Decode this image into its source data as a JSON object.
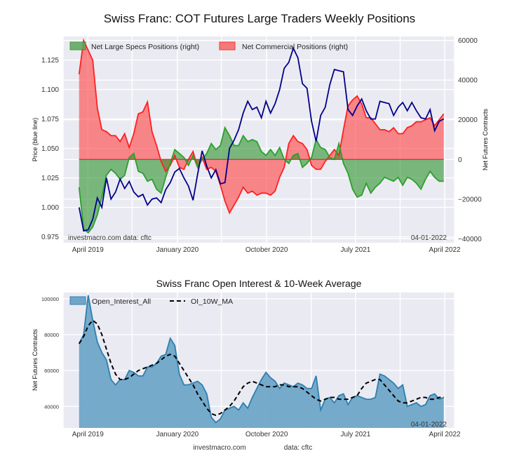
{
  "chart_data": [
    {
      "type": "line",
      "title": "Swiss Franc: COT Futures Large Traders Weekly Positions",
      "xlabel": "",
      "ylabel": "Price (blue line)",
      "y2label": "Net Futures Contracts",
      "x_ticks": [
        "April 2019",
        "January 2020",
        "October 2020",
        "July 2021",
        "April 2022"
      ],
      "y_ticks": [
        "0.975",
        "1.000",
        "1.025",
        "1.050",
        "1.075",
        "1.100",
        "1.125"
      ],
      "y2_ticks": [
        "−40000",
        "−20000",
        "0",
        "20000",
        "40000",
        "60000"
      ],
      "ylim": [
        0.97,
        1.145
      ],
      "y2lim": [
        -42000,
        62000
      ],
      "grid": true,
      "legend": "top-left",
      "annotations": {
        "source": "investmacro.com   data: cftc",
        "date": "04-01-2022"
      },
      "x": [
        "2019-03-05",
        "2019-03-19",
        "2019-04-02",
        "2019-04-16",
        "2019-04-30",
        "2019-05-14",
        "2019-05-28",
        "2019-06-11",
        "2019-06-25",
        "2019-07-09",
        "2019-07-23",
        "2019-08-06",
        "2019-08-20",
        "2019-09-03",
        "2019-09-17",
        "2019-10-01",
        "2019-10-15",
        "2019-10-29",
        "2019-11-12",
        "2019-11-26",
        "2019-12-10",
        "2019-12-24",
        "2020-01-07",
        "2020-01-21",
        "2020-02-04",
        "2020-02-18",
        "2020-03-03",
        "2020-03-17",
        "2020-03-31",
        "2020-04-14",
        "2020-04-28",
        "2020-05-12",
        "2020-05-26",
        "2020-06-09",
        "2020-06-23",
        "2020-07-07",
        "2020-07-21",
        "2020-08-04",
        "2020-08-18",
        "2020-09-01",
        "2020-09-15",
        "2020-09-29",
        "2020-10-13",
        "2020-10-27",
        "2020-11-10",
        "2020-11-24",
        "2020-12-08",
        "2020-12-22",
        "2021-01-05",
        "2021-01-19",
        "2021-02-02",
        "2021-02-16",
        "2021-03-02",
        "2021-03-16",
        "2021-03-30",
        "2021-04-13",
        "2021-04-27",
        "2021-05-11",
        "2021-05-25",
        "2021-06-08",
        "2021-06-22",
        "2021-07-06",
        "2021-07-20",
        "2021-08-03",
        "2021-08-17",
        "2021-08-31",
        "2021-09-14",
        "2021-09-28",
        "2021-10-12",
        "2021-10-26",
        "2021-11-09",
        "2021-11-23",
        "2021-12-07",
        "2021-12-21",
        "2022-01-04",
        "2022-01-18",
        "2022-02-01",
        "2022-02-15",
        "2022-03-01",
        "2022-03-15",
        "2022-03-29"
      ],
      "series": [
        {
          "name": "Price (blue line)",
          "axis": "left",
          "color": "#00008b",
          "values": [
            1.0,
            0.98,
            0.981,
            0.99,
            1.008,
            1.0,
            1.025,
            1.007,
            1.013,
            1.024,
            1.016,
            1.022,
            1.013,
            1.009,
            1.011,
            1.002,
            1.007,
            1.008,
            1.004,
            1.015,
            1.021,
            1.03,
            1.033,
            1.025,
            1.018,
            1.006,
            1.028,
            1.048,
            1.035,
            1.025,
            1.032,
            1.02,
            1.021,
            1.05,
            1.057,
            1.066,
            1.08,
            1.09,
            1.083,
            1.085,
            1.076,
            1.09,
            1.08,
            1.088,
            1.1,
            1.118,
            1.123,
            1.135,
            1.127,
            1.105,
            1.101,
            1.073,
            1.056,
            1.078,
            1.085,
            1.104,
            1.117,
            1.116,
            1.115,
            1.083,
            1.078,
            1.086,
            1.092,
            1.082,
            1.075,
            1.075,
            1.09,
            1.089,
            1.088,
            1.078,
            1.085,
            1.089,
            1.082,
            1.089,
            1.082,
            1.076,
            1.075,
            1.083,
            1.065,
            1.073,
            1.075
          ]
        },
        {
          "name": "Net Large Specs Positions (right)",
          "axis": "right",
          "color": "#2ca02c",
          "values": [
            -14000,
            -35000,
            -37000,
            -34000,
            -28000,
            -19000,
            -8000,
            -5000,
            -7000,
            -10000,
            -8000,
            1000,
            3000,
            -6000,
            -7000,
            -11000,
            -10000,
            -15000,
            -17000,
            -9000,
            -2000,
            5000,
            3000,
            1000,
            -3000,
            2000,
            -4000,
            0,
            3000,
            8000,
            5000,
            7000,
            16000,
            12000,
            7000,
            7000,
            12000,
            9000,
            10000,
            9000,
            4000,
            2000,
            5000,
            2000,
            6000,
            0,
            -2000,
            2000,
            3000,
            -4000,
            -2000,
            1000,
            10000,
            6000,
            5000,
            1000,
            0,
            8000,
            -2000,
            -7000,
            -15000,
            -19000,
            -18000,
            -12000,
            -17000,
            -14000,
            -12000,
            -9000,
            -10000,
            -11000,
            -9000,
            -13000,
            -9000,
            -10000,
            -12000,
            -15000,
            -10000,
            -6000,
            -9000,
            -11000,
            -11000
          ]
        },
        {
          "name": "Net Commercial Positions (right)",
          "axis": "right",
          "color": "#ff2020",
          "values": [
            43000,
            60000,
            55000,
            50000,
            26000,
            15000,
            14000,
            12000,
            12000,
            9000,
            13000,
            6000,
            13000,
            23000,
            24000,
            29000,
            14000,
            7000,
            -1000,
            -6000,
            -3000,
            2000,
            -4000,
            -5000,
            0,
            4000,
            -4000,
            1000,
            -5000,
            -4000,
            -6000,
            -13000,
            -21000,
            -27000,
            -23000,
            -19000,
            -14000,
            -17000,
            -16000,
            -18000,
            -17000,
            -17000,
            -18000,
            -16000,
            -9000,
            -4000,
            8000,
            12000,
            9000,
            8000,
            5000,
            -3000,
            -5000,
            -5000,
            -1000,
            2000,
            5000,
            2000,
            15000,
            27000,
            30000,
            32000,
            28000,
            21000,
            21000,
            18000,
            15000,
            15000,
            14000,
            16000,
            13000,
            13000,
            16000,
            17000,
            19000,
            19000,
            20000,
            21000,
            17000,
            20000,
            23000
          ]
        }
      ]
    },
    {
      "type": "area",
      "title": "Swiss Franc Open Interest & 10-Week Average",
      "xlabel": "",
      "ylabel": "Net Futures Contracts",
      "x_ticks": [
        "April 2019",
        "January 2020",
        "October 2020",
        "July 2021",
        "April 2022"
      ],
      "y_ticks": [
        "40000",
        "60000",
        "80000",
        "100000"
      ],
      "ylim": [
        28000,
        103500
      ],
      "grid": true,
      "legend": "top-left",
      "annotations": {
        "date": "04-01-2022"
      },
      "footer": {
        "site": "investmacro.com",
        "data": "data: cftc"
      },
      "x": [
        "2019-03-05",
        "2019-03-19",
        "2019-04-02",
        "2019-04-16",
        "2019-04-30",
        "2019-05-14",
        "2019-05-28",
        "2019-06-11",
        "2019-06-25",
        "2019-07-09",
        "2019-07-23",
        "2019-08-06",
        "2019-08-20",
        "2019-09-03",
        "2019-09-17",
        "2019-10-01",
        "2019-10-15",
        "2019-10-29",
        "2019-11-12",
        "2019-11-26",
        "2019-12-10",
        "2019-12-24",
        "2020-01-07",
        "2020-01-21",
        "2020-02-04",
        "2020-02-18",
        "2020-03-03",
        "2020-03-17",
        "2020-03-31",
        "2020-04-14",
        "2020-04-28",
        "2020-05-12",
        "2020-05-26",
        "2020-06-09",
        "2020-06-23",
        "2020-07-07",
        "2020-07-21",
        "2020-08-04",
        "2020-08-18",
        "2020-09-01",
        "2020-09-15",
        "2020-09-29",
        "2020-10-13",
        "2020-10-27",
        "2020-11-10",
        "2020-11-24",
        "2020-12-08",
        "2020-12-22",
        "2021-01-05",
        "2021-01-19",
        "2021-02-02",
        "2021-02-16",
        "2021-03-02",
        "2021-03-16",
        "2021-03-30",
        "2021-04-13",
        "2021-04-27",
        "2021-05-11",
        "2021-05-25",
        "2021-06-08",
        "2021-06-22",
        "2021-07-06",
        "2021-07-20",
        "2021-08-03",
        "2021-08-17",
        "2021-08-31",
        "2021-09-14",
        "2021-09-28",
        "2021-10-12",
        "2021-10-26",
        "2021-11-09",
        "2021-11-23",
        "2021-12-07",
        "2021-12-21",
        "2022-01-04",
        "2022-01-18",
        "2022-02-01",
        "2022-02-15",
        "2022-03-01",
        "2022-03-15",
        "2022-03-29"
      ],
      "series": [
        {
          "name": "Open_Interest_All",
          "color": "#2f7fae",
          "fill": "#6fa6c8",
          "values": [
            75000,
            80000,
            102000,
            88000,
            76000,
            70000,
            66000,
            55000,
            52000,
            55000,
            55000,
            60000,
            59000,
            57000,
            57000,
            62000,
            62000,
            64000,
            68000,
            69000,
            78000,
            74000,
            58000,
            52000,
            52000,
            53000,
            54000,
            52000,
            47000,
            34000,
            31000,
            33000,
            38000,
            39000,
            40000,
            38000,
            42000,
            39000,
            45000,
            50000,
            55000,
            59000,
            56000,
            54000,
            50000,
            53000,
            52000,
            51000,
            53000,
            52000,
            50000,
            50000,
            57000,
            38000,
            44000,
            45000,
            42000,
            46000,
            47000,
            41000,
            45000,
            46000,
            45000,
            44000,
            44000,
            45000,
            58000,
            57000,
            55000,
            53000,
            50000,
            52000,
            40000,
            41000,
            42000,
            40000,
            41000,
            46000,
            47000,
            44000,
            45000
          ]
        },
        {
          "name": "OI_10W_MA",
          "color": "#000000",
          "style": "dashed",
          "values": [
            75000,
            79000,
            85000,
            88000,
            86000,
            80000,
            72000,
            64000,
            58000,
            55000,
            55000,
            56000,
            58000,
            60000,
            61000,
            62000,
            63000,
            64000,
            66000,
            68000,
            69000,
            68000,
            64000,
            60000,
            56000,
            52000,
            47000,
            43000,
            39000,
            36000,
            35000,
            36000,
            38000,
            40000,
            43000,
            47000,
            51000,
            53000,
            54000,
            53000,
            52000,
            51000,
            51000,
            51000,
            52000,
            52000,
            51000,
            51000,
            51000,
            50000,
            48000,
            46000,
            44000,
            43000,
            44000,
            45000,
            45000,
            44000,
            44000,
            44000,
            45000,
            46000,
            50000,
            53000,
            54000,
            55000,
            55000,
            52000,
            49000,
            46000,
            43000,
            42000,
            42000,
            43000,
            44000,
            45000,
            45000,
            44000,
            44000,
            45000,
            45000
          ]
        }
      ]
    }
  ]
}
